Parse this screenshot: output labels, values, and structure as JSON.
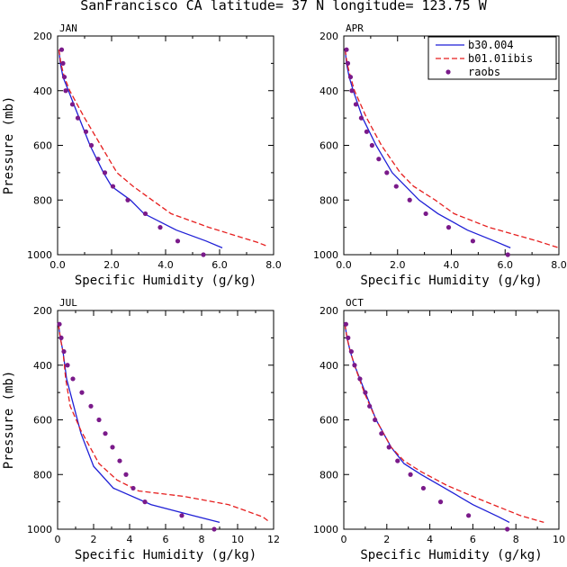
{
  "figure_title": "SanFrancisco CA  latitude= 37 N longitude= 123.75 W",
  "legend": [
    {
      "label": "b30.004",
      "color": "#1f1fd6",
      "style": "solid"
    },
    {
      "label": "b01.01ibis",
      "color": "#e61e1e",
      "style": "dashed"
    },
    {
      "label": "raobs",
      "color": "#7a1a8a",
      "style": "dots"
    }
  ],
  "chart_data": [
    {
      "type": "line",
      "panel": "JAN",
      "xlabel": "Specific Humidity (g/kg)",
      "ylabel": "Pressure (mb)",
      "xlim": [
        0,
        8
      ],
      "ylim": [
        1000,
        200
      ],
      "xticks": [
        "0.0",
        "2.0",
        "4.0",
        "6.0",
        "8.0"
      ],
      "xtick_values": [
        0,
        2,
        4,
        6,
        8
      ],
      "yticks": [
        "200",
        "400",
        "600",
        "800",
        "1000"
      ],
      "ytick_values": [
        200,
        400,
        600,
        800,
        1000
      ],
      "series": [
        {
          "name": "b30.004",
          "points": [
            [
              0.05,
              250
            ],
            [
              0.1,
              300
            ],
            [
              0.2,
              350
            ],
            [
              0.4,
              400
            ],
            [
              0.8,
              500
            ],
            [
              1.2,
              600
            ],
            [
              1.7,
              700
            ],
            [
              2.0,
              750
            ],
            [
              2.7,
              800
            ],
            [
              3.2,
              850
            ],
            [
              4.4,
              910
            ],
            [
              5.5,
              950
            ],
            [
              6.1,
              975
            ]
          ]
        },
        {
          "name": "b01.01ibis",
          "points": [
            [
              0.05,
              250
            ],
            [
              0.12,
              300
            ],
            [
              0.25,
              350
            ],
            [
              0.45,
              400
            ],
            [
              1.0,
              500
            ],
            [
              1.6,
              600
            ],
            [
              2.2,
              700
            ],
            [
              2.8,
              750
            ],
            [
              3.5,
              800
            ],
            [
              4.2,
              850
            ],
            [
              5.6,
              900
            ],
            [
              7.4,
              955
            ],
            [
              7.8,
              970
            ]
          ]
        },
        {
          "name": "raobs",
          "points": [
            [
              0.15,
              250
            ],
            [
              0.2,
              300
            ],
            [
              0.25,
              350
            ],
            [
              0.3,
              400
            ],
            [
              0.55,
              450
            ],
            [
              0.75,
              500
            ],
            [
              1.05,
              550
            ],
            [
              1.25,
              600
            ],
            [
              1.5,
              650
            ],
            [
              1.75,
              700
            ],
            [
              2.05,
              750
            ],
            [
              2.6,
              800
            ],
            [
              3.25,
              850
            ],
            [
              3.8,
              900
            ],
            [
              4.45,
              950
            ],
            [
              5.4,
              1000
            ]
          ]
        }
      ]
    },
    {
      "type": "line",
      "panel": "APR",
      "xlabel": "Specific Humidity (g/kg)",
      "ylabel": "",
      "xlim": [
        0,
        8
      ],
      "ylim": [
        1000,
        200
      ],
      "xticks": [
        "0.0",
        "2.0",
        "4.0",
        "6.0",
        "8.0"
      ],
      "xtick_values": [
        0,
        2,
        4,
        6,
        8
      ],
      "yticks": [
        "200",
        "400",
        "600",
        "800",
        "1000"
      ],
      "ytick_values": [
        200,
        400,
        600,
        800,
        1000
      ],
      "series": [
        {
          "name": "b30.004",
          "points": [
            [
              0.05,
              250
            ],
            [
              0.1,
              300
            ],
            [
              0.2,
              350
            ],
            [
              0.35,
              400
            ],
            [
              0.7,
              500
            ],
            [
              1.2,
              600
            ],
            [
              1.8,
              700
            ],
            [
              2.3,
              750
            ],
            [
              2.8,
              800
            ],
            [
              3.5,
              850
            ],
            [
              4.6,
              910
            ],
            [
              5.6,
              950
            ],
            [
              6.2,
              975
            ]
          ]
        },
        {
          "name": "b01.01ibis",
          "points": [
            [
              0.05,
              250
            ],
            [
              0.12,
              300
            ],
            [
              0.25,
              350
            ],
            [
              0.4,
              400
            ],
            [
              0.85,
              500
            ],
            [
              1.4,
              600
            ],
            [
              2.1,
              700
            ],
            [
              2.6,
              750
            ],
            [
              3.4,
              800
            ],
            [
              4.1,
              850
            ],
            [
              5.4,
              900
            ],
            [
              7.2,
              950
            ],
            [
              8.0,
              975
            ]
          ]
        },
        {
          "name": "raobs",
          "points": [
            [
              0.1,
              250
            ],
            [
              0.15,
              300
            ],
            [
              0.25,
              350
            ],
            [
              0.3,
              400
            ],
            [
              0.45,
              450
            ],
            [
              0.65,
              500
            ],
            [
              0.85,
              550
            ],
            [
              1.05,
              600
            ],
            [
              1.3,
              650
            ],
            [
              1.6,
              700
            ],
            [
              1.95,
              750
            ],
            [
              2.45,
              800
            ],
            [
              3.05,
              850
            ],
            [
              3.9,
              900
            ],
            [
              4.8,
              950
            ],
            [
              6.1,
              1000
            ]
          ]
        }
      ]
    },
    {
      "type": "line",
      "panel": "JUL",
      "xlabel": "Specific Humidity (g/kg)",
      "ylabel": "Pressure (mb)",
      "xlim": [
        0,
        12
      ],
      "ylim": [
        1000,
        200
      ],
      "xticks": [
        "0",
        "2",
        "4",
        "6",
        "8",
        "10",
        "12"
      ],
      "xtick_values": [
        0,
        2,
        4,
        6,
        8,
        10,
        12
      ],
      "yticks": [
        "200",
        "400",
        "600",
        "800",
        "1000"
      ],
      "ytick_values": [
        200,
        400,
        600,
        800,
        1000
      ],
      "series": [
        {
          "name": "b30.004",
          "points": [
            [
              0.05,
              250
            ],
            [
              0.15,
              300
            ],
            [
              0.3,
              350
            ],
            [
              0.5,
              450
            ],
            [
              0.9,
              550
            ],
            [
              1.3,
              650
            ],
            [
              2.0,
              770
            ],
            [
              3.1,
              850
            ],
            [
              5.2,
              910
            ],
            [
              7.5,
              950
            ],
            [
              9.0,
              975
            ]
          ]
        },
        {
          "name": "b01.01ibis",
          "points": [
            [
              0.05,
              250
            ],
            [
              0.15,
              300
            ],
            [
              0.3,
              350
            ],
            [
              0.45,
              450
            ],
            [
              0.7,
              550
            ],
            [
              1.3,
              640
            ],
            [
              2.3,
              760
            ],
            [
              3.3,
              820
            ],
            [
              4.5,
              860
            ],
            [
              7.0,
              880
            ],
            [
              9.5,
              910
            ],
            [
              11.4,
              955
            ],
            [
              11.8,
              975
            ]
          ]
        },
        {
          "name": "raobs",
          "points": [
            [
              0.1,
              250
            ],
            [
              0.2,
              300
            ],
            [
              0.35,
              350
            ],
            [
              0.55,
              400
            ],
            [
              0.85,
              450
            ],
            [
              1.35,
              500
            ],
            [
              1.85,
              550
            ],
            [
              2.3,
              600
            ],
            [
              2.65,
              650
            ],
            [
              3.05,
              700
            ],
            [
              3.45,
              750
            ],
            [
              3.8,
              800
            ],
            [
              4.2,
              850
            ],
            [
              4.85,
              900
            ],
            [
              6.9,
              950
            ],
            [
              8.7,
              1000
            ]
          ]
        }
      ]
    },
    {
      "type": "line",
      "panel": "OCT",
      "xlabel": "Specific Humidity (g/kg)",
      "ylabel": "",
      "xlim": [
        0,
        10
      ],
      "ylim": [
        1000,
        200
      ],
      "xticks": [
        "0",
        "2",
        "4",
        "6",
        "8",
        "10"
      ],
      "xtick_values": [
        0,
        2,
        4,
        6,
        8,
        10
      ],
      "yticks": [
        "200",
        "400",
        "600",
        "800",
        "1000"
      ],
      "ytick_values": [
        200,
        400,
        600,
        800,
        1000
      ],
      "series": [
        {
          "name": "b30.004",
          "points": [
            [
              0.05,
              250
            ],
            [
              0.15,
              300
            ],
            [
              0.3,
              350
            ],
            [
              0.5,
              400
            ],
            [
              1.0,
              500
            ],
            [
              1.5,
              600
            ],
            [
              2.2,
              700
            ],
            [
              2.8,
              760
            ],
            [
              3.6,
              800
            ],
            [
              4.7,
              850
            ],
            [
              6.0,
              910
            ],
            [
              7.2,
              955
            ],
            [
              7.7,
              975
            ]
          ]
        },
        {
          "name": "b01.01ibis",
          "points": [
            [
              0.05,
              250
            ],
            [
              0.15,
              300
            ],
            [
              0.3,
              350
            ],
            [
              0.5,
              400
            ],
            [
              0.95,
              500
            ],
            [
              1.5,
              600
            ],
            [
              2.2,
              700
            ],
            [
              2.8,
              750
            ],
            [
              3.6,
              790
            ],
            [
              4.8,
              840
            ],
            [
              6.3,
              890
            ],
            [
              8.2,
              950
            ],
            [
              9.3,
              975
            ]
          ]
        },
        {
          "name": "raobs",
          "points": [
            [
              0.1,
              250
            ],
            [
              0.2,
              300
            ],
            [
              0.35,
              350
            ],
            [
              0.5,
              400
            ],
            [
              0.75,
              450
            ],
            [
              1.0,
              500
            ],
            [
              1.2,
              550
            ],
            [
              1.45,
              600
            ],
            [
              1.75,
              650
            ],
            [
              2.1,
              700
            ],
            [
              2.5,
              750
            ],
            [
              3.1,
              800
            ],
            [
              3.7,
              850
            ],
            [
              4.5,
              900
            ],
            [
              5.8,
              950
            ],
            [
              7.6,
              1000
            ]
          ]
        }
      ]
    }
  ]
}
